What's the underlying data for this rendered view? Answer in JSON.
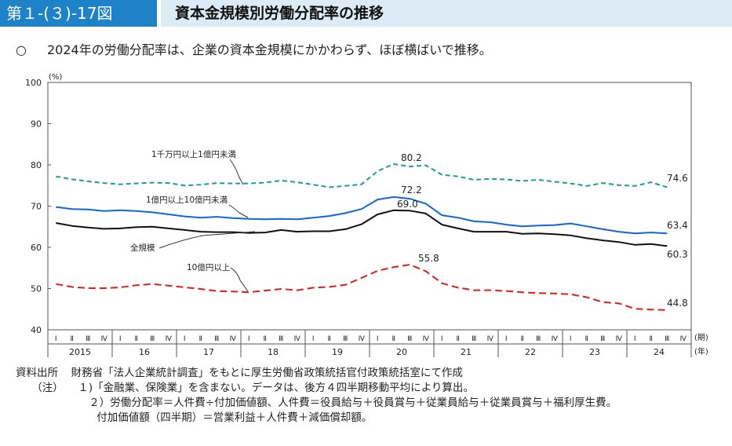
{
  "header": {
    "figure_label": "第１-(３)-17図",
    "title": "資本金規模別労働分配率の推移"
  },
  "summary": {
    "bullet": "○",
    "text": "2024年の労働分配率は、企業の資本金規模にかかわらず、ほぼ横ばいで推移。"
  },
  "chart_data": {
    "type": "line",
    "ylabel": "(%)",
    "ylim": [
      40,
      100
    ],
    "yticks": [
      40,
      50,
      60,
      70,
      80,
      90,
      100
    ],
    "period_unit": "(期)",
    "year_unit": "(年)",
    "quarter_labels": [
      "Ⅰ",
      "Ⅱ",
      "Ⅲ",
      "Ⅳ"
    ],
    "years": [
      "2015",
      "16",
      "17",
      "18",
      "19",
      "20",
      "21",
      "22",
      "23",
      "24"
    ],
    "series": [
      {
        "name": "1千万円以上1億円未満",
        "color": "#1aa08c",
        "dash": "6,4",
        "values": [
          77.2,
          76.5,
          76.0,
          75.6,
          75.3,
          75.5,
          75.7,
          75.6,
          75.0,
          75.2,
          75.6,
          75.5,
          75.5,
          75.7,
          76.2,
          75.8,
          75.2,
          74.6,
          74.9,
          75.3,
          78.5,
          80.2,
          79.6,
          79.9,
          77.6,
          77.2,
          76.4,
          76.6,
          76.5,
          76.1,
          76.4,
          75.9,
          75.5,
          74.9,
          75.6,
          75.1,
          74.9,
          75.8,
          74.6
        ]
      },
      {
        "name": "1億円以上10億円未満",
        "color": "#1464dc",
        "dash": "",
        "values": [
          69.8,
          69.3,
          69.2,
          68.8,
          69.0,
          68.8,
          68.5,
          68.0,
          67.5,
          67.2,
          67.4,
          67.1,
          66.9,
          66.8,
          66.9,
          66.8,
          67.2,
          67.6,
          68.3,
          69.3,
          71.6,
          72.2,
          71.8,
          70.6,
          67.8,
          67.2,
          66.3,
          66.1,
          65.5,
          65.1,
          65.3,
          65.4,
          65.8,
          65.1,
          64.4,
          63.8,
          63.4,
          63.6,
          63.4
        ]
      },
      {
        "name": "全規模",
        "color": "#111111",
        "dash": "",
        "values": [
          65.9,
          65.2,
          64.8,
          64.5,
          64.6,
          64.9,
          65.0,
          64.6,
          64.2,
          63.8,
          63.7,
          63.7,
          63.5,
          63.6,
          64.2,
          63.8,
          63.9,
          63.9,
          64.4,
          65.6,
          68.0,
          69.0,
          68.9,
          68.2,
          65.5,
          64.6,
          63.8,
          63.8,
          63.8,
          63.3,
          63.4,
          63.2,
          62.9,
          62.2,
          61.7,
          61.3,
          60.6,
          60.8,
          60.3
        ]
      },
      {
        "name": "10億円以上",
        "color": "#dc1e1e",
        "dash": "9,5",
        "values": [
          51.1,
          50.4,
          50.1,
          50.1,
          50.3,
          50.8,
          51.1,
          50.7,
          50.3,
          49.9,
          49.4,
          49.3,
          49.1,
          49.5,
          49.9,
          49.6,
          50.2,
          50.4,
          50.9,
          52.6,
          54.3,
          55.2,
          55.8,
          54.2,
          51.3,
          50.2,
          49.6,
          49.6,
          49.4,
          49.1,
          48.9,
          48.8,
          48.6,
          47.9,
          46.7,
          46.4,
          45.1,
          44.9,
          44.8
        ]
      }
    ],
    "data_labels": [
      "80.2",
      "74.6",
      "72.2",
      "63.4",
      "69.0",
      "60.3",
      "55.8",
      "44.8"
    ]
  },
  "notes": {
    "source_label": "資料出所",
    "source_text": "財務省「法人企業統計調査」をもとに厚生労働省政策統括官付政策統括室にて作成",
    "note_label": "（注）",
    "note1": "１)「金融業、保険業」を含まない。データは、後方４四半期移動平均により算出。",
    "note2": "２）労働分配率＝人件費÷付加価値額、人件費＝役員給与＋役員賞与＋従業員給与＋従業員賞与＋福利厚生費。",
    "note3": "付加価値額（四半期）＝営業利益＋人件費＋減価償却額。"
  }
}
